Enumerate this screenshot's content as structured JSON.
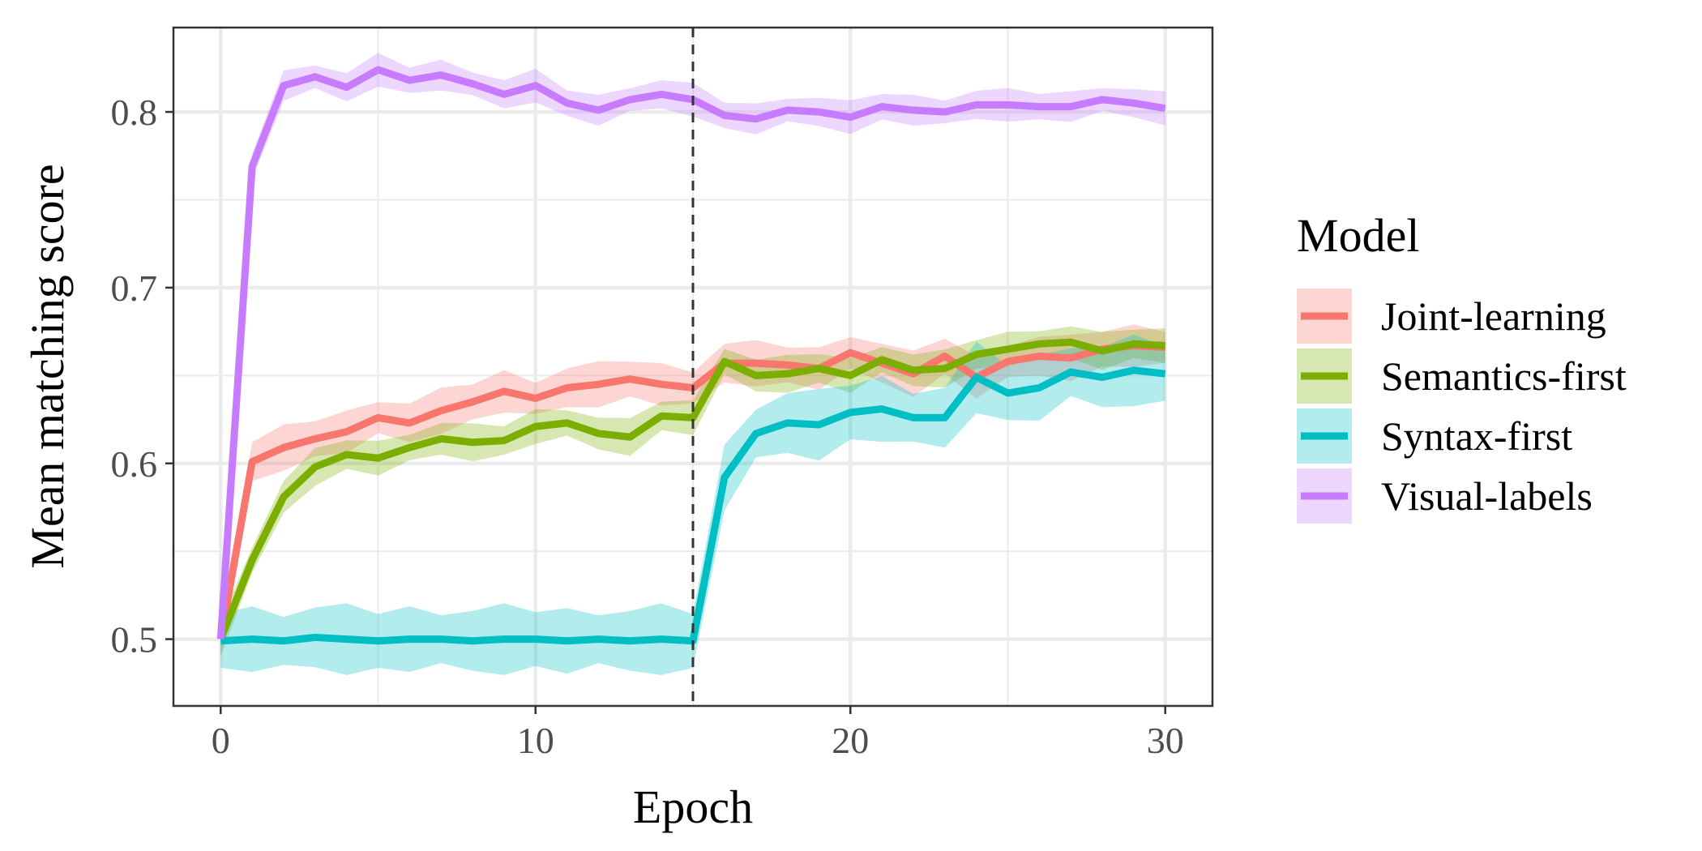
{
  "chart_data": {
    "type": "line",
    "xlabel": "Epoch",
    "ylabel": "Mean matching score",
    "xlim": [
      -1.5,
      31.5
    ],
    "ylim": [
      0.462,
      0.848
    ],
    "x_ticks": [
      0,
      10,
      20,
      30
    ],
    "x_minor_ticks": [
      5,
      15,
      25
    ],
    "y_ticks": [
      0.5,
      0.6,
      0.7,
      0.8
    ],
    "y_tick_labels": [
      "0.5",
      "0.6",
      "0.7",
      "0.8"
    ],
    "y_minor_ticks": [
      0.55,
      0.65,
      0.75
    ],
    "grid": true,
    "reference_line": {
      "x": 15,
      "style": "dashed"
    },
    "legend": {
      "title": "Model",
      "placement": "right"
    },
    "series": [
      {
        "name": "Joint-learning",
        "color": "#F8766D",
        "values": [
          0.5,
          0.601,
          0.609,
          0.614,
          0.618,
          0.626,
          0.623,
          0.63,
          0.635,
          0.641,
          0.637,
          0.643,
          0.645,
          0.648,
          0.645,
          0.643,
          0.657,
          0.657,
          0.656,
          0.654,
          0.663,
          0.657,
          0.651,
          0.661,
          0.649,
          0.658,
          0.661,
          0.66,
          0.665,
          0.667,
          0.666
        ],
        "band": 0.011
      },
      {
        "name": "Semantics-first",
        "color": "#7CAE00",
        "values": [
          0.5,
          0.545,
          0.581,
          0.598,
          0.605,
          0.603,
          0.609,
          0.614,
          0.612,
          0.613,
          0.621,
          0.623,
          0.617,
          0.615,
          0.627,
          0.626,
          0.658,
          0.65,
          0.651,
          0.654,
          0.65,
          0.659,
          0.653,
          0.654,
          0.662,
          0.665,
          0.668,
          0.669,
          0.664,
          0.668,
          0.667
        ],
        "band": 0.009
      },
      {
        "name": "Syntax-first",
        "color": "#00BFC4",
        "values": [
          0.499,
          0.5,
          0.499,
          0.501,
          0.5,
          0.499,
          0.5,
          0.5,
          0.499,
          0.5,
          0.5,
          0.499,
          0.5,
          0.499,
          0.5,
          0.499,
          0.592,
          0.617,
          0.623,
          0.622,
          0.629,
          0.631,
          0.626,
          0.626,
          0.649,
          0.64,
          0.643,
          0.652,
          0.649,
          0.653,
          0.651
        ],
        "band": 0.017
      },
      {
        "name": "Visual-labels",
        "color": "#C77CFF",
        "values": [
          0.5,
          0.769,
          0.815,
          0.82,
          0.814,
          0.824,
          0.818,
          0.821,
          0.816,
          0.81,
          0.815,
          0.805,
          0.801,
          0.807,
          0.81,
          0.807,
          0.798,
          0.796,
          0.801,
          0.8,
          0.797,
          0.803,
          0.801,
          0.8,
          0.804,
          0.804,
          0.803,
          0.803,
          0.807,
          0.805,
          0.802
        ],
        "band": 0.008
      }
    ]
  }
}
